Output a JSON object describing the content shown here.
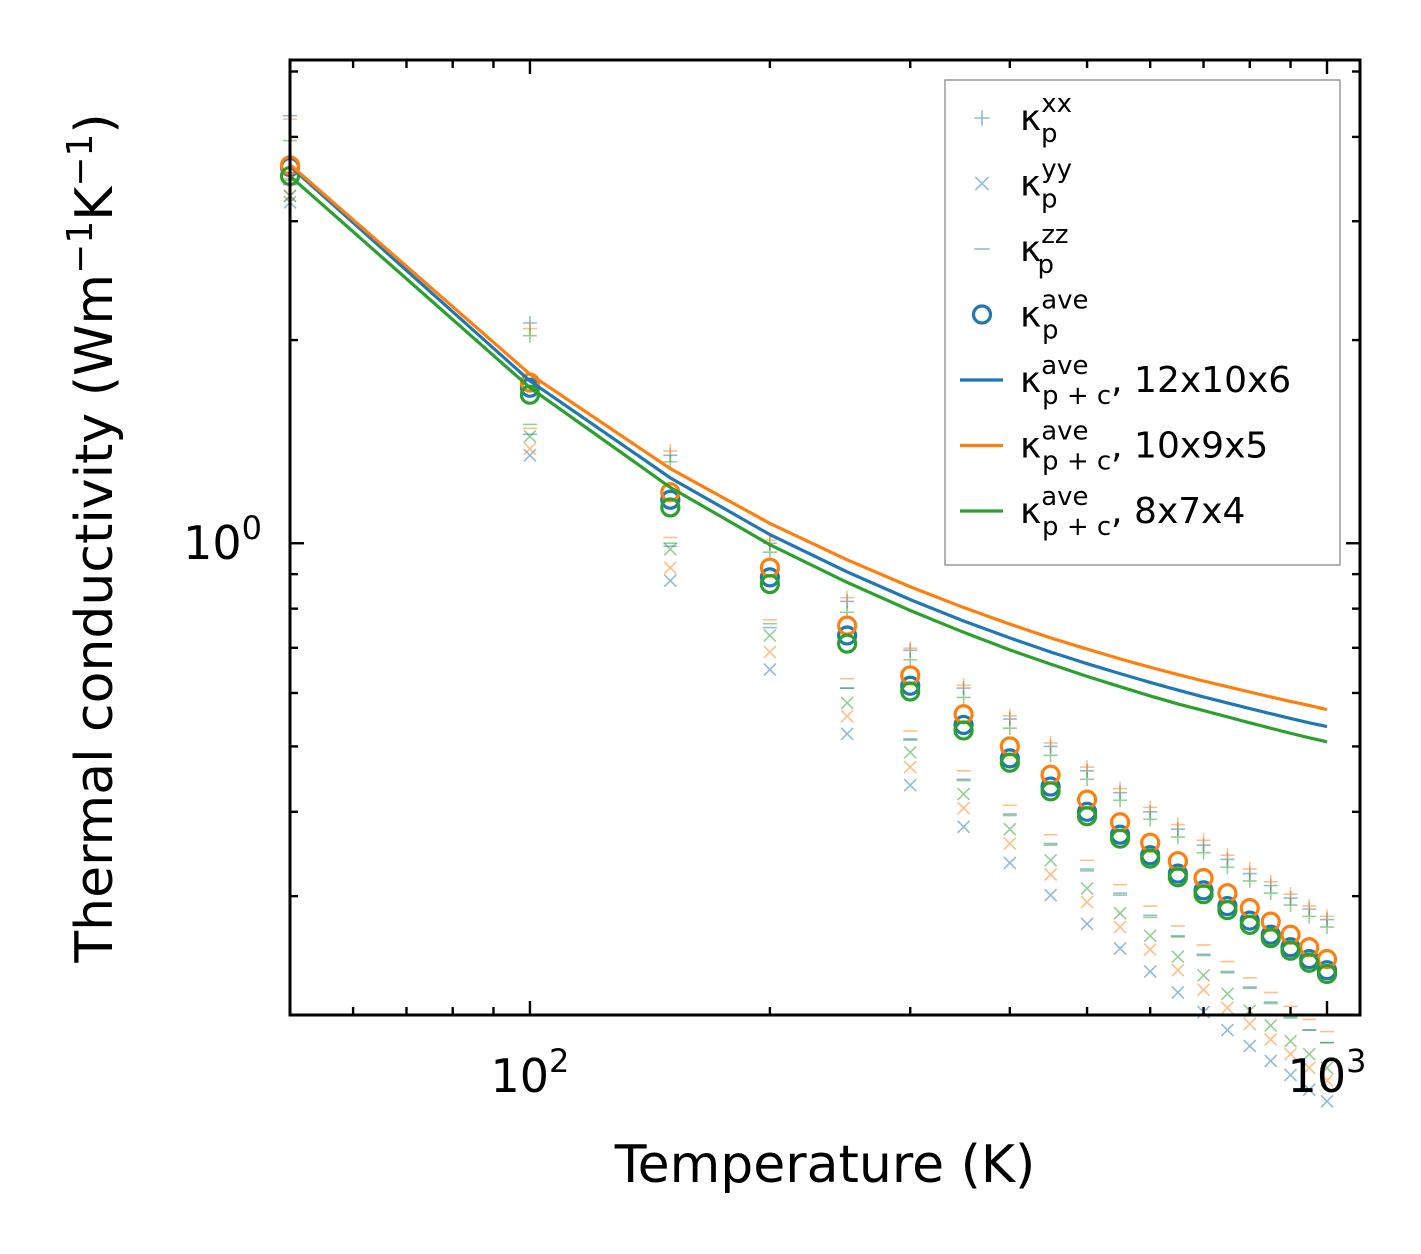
{
  "chart_data": {
    "type": "scatter",
    "xscale": "log",
    "yscale": "log",
    "xlabel": "Temperature (K)",
    "ylabel": {
      "main": "Thermal conductivity (Wm",
      "exp1": "−1",
      "mid": "K",
      "exp2": "−1",
      "end": ")"
    },
    "xlim": [
      50,
      1100
    ],
    "ylim": [
      0.2,
      5.2
    ],
    "xticks": [
      {
        "value": 100,
        "base": "10",
        "exp": "2"
      },
      {
        "value": 1000,
        "base": "10",
        "exp": "3"
      }
    ],
    "yticks": [
      {
        "value": 1,
        "base": "10",
        "exp": "0"
      }
    ],
    "x": [
      50,
      100,
      150,
      200,
      250,
      300,
      350,
      400,
      450,
      500,
      550,
      600,
      650,
      700,
      750,
      800,
      850,
      900,
      950,
      1000
    ],
    "colors": {
      "blue": "#1f77b4",
      "orange": "#ff7f0e",
      "green": "#2ca02c"
    },
    "legend": {
      "position": "upper right",
      "entries": [
        {
          "marker": "plus",
          "color": "#1f77b4",
          "sym": "κ",
          "sup": "xx",
          "sub": "p",
          "suffix": ""
        },
        {
          "marker": "x",
          "color": "#1f77b4",
          "sym": "κ",
          "sup": "yy",
          "sub": "p",
          "suffix": ""
        },
        {
          "marker": "dash",
          "color": "#1f77b4",
          "sym": "κ",
          "sup": "zz",
          "sub": "p",
          "suffix": ""
        },
        {
          "marker": "circle",
          "color": "#1f77b4",
          "sym": "κ",
          "sup": "ave",
          "sub": "p",
          "suffix": ""
        },
        {
          "marker": "line",
          "color": "#1f77b4",
          "sym": "κ",
          "sup": "ave",
          "sub": "p + c",
          "suffix": ", 12x10x6"
        },
        {
          "marker": "line",
          "color": "#ff7f0e",
          "sym": "κ",
          "sup": "ave",
          "sub": "p + c",
          "suffix": ", 10x9x5"
        },
        {
          "marker": "line",
          "color": "#2ca02c",
          "sym": "κ",
          "sup": "ave",
          "sub": "p + c",
          "suffix": ", 8x7x4"
        }
      ]
    },
    "series": [
      {
        "name": "12x10x6",
        "color": "#1f77b4",
        "kxx": [
          4.3,
          2.12,
          1.35,
          1.0,
          0.82,
          0.694,
          0.61,
          0.549,
          0.5,
          0.46,
          0.427,
          0.4,
          0.377,
          0.357,
          0.34,
          0.324,
          0.311,
          0.298,
          0.287,
          0.277
        ],
        "kyy": [
          3.2,
          1.35,
          0.88,
          0.65,
          0.522,
          0.438,
          0.38,
          0.336,
          0.301,
          0.273,
          0.251,
          0.232,
          0.216,
          0.202,
          0.19,
          0.18,
          0.171,
          0.163,
          0.155,
          0.149
        ],
        "kzz": [
          3.4,
          1.45,
          0.99,
          0.75,
          0.61,
          0.513,
          0.447,
          0.397,
          0.359,
          0.329,
          0.303,
          0.281,
          0.262,
          0.246,
          0.232,
          0.22,
          0.209,
          0.199,
          0.19,
          0.182
        ],
        "kave": [
          3.61,
          1.7,
          1.16,
          0.89,
          0.73,
          0.615,
          0.538,
          0.48,
          0.436,
          0.4,
          0.37,
          0.345,
          0.324,
          0.306,
          0.29,
          0.276,
          0.263,
          0.252,
          0.242,
          0.233
        ],
        "kpc": [
          3.62,
          1.74,
          1.25,
          1.03,
          0.907,
          0.825,
          0.767,
          0.724,
          0.69,
          0.663,
          0.641,
          0.622,
          0.606,
          0.592,
          0.58,
          0.569,
          0.559,
          0.55,
          0.542,
          0.535
        ]
      },
      {
        "name": "10x9x5",
        "color": "#ff7f0e",
        "kxx": [
          4.25,
          2.08,
          1.37,
          1.01,
          0.83,
          0.699,
          0.616,
          0.555,
          0.506,
          0.466,
          0.433,
          0.406,
          0.383,
          0.363,
          0.345,
          0.329,
          0.315,
          0.302,
          0.29,
          0.28
        ],
        "kyy": [
          3.27,
          1.38,
          0.92,
          0.69,
          0.554,
          0.466,
          0.405,
          0.359,
          0.323,
          0.294,
          0.27,
          0.25,
          0.233,
          0.218,
          0.205,
          0.194,
          0.184,
          0.175,
          0.167,
          0.16
        ],
        "kzz": [
          3.47,
          1.48,
          1.02,
          0.77,
          0.63,
          0.527,
          0.46,
          0.409,
          0.37,
          0.339,
          0.312,
          0.29,
          0.271,
          0.254,
          0.24,
          0.227,
          0.216,
          0.206,
          0.197,
          0.189
        ],
        "kave": [
          3.63,
          1.73,
          1.19,
          0.92,
          0.755,
          0.637,
          0.558,
          0.5,
          0.454,
          0.417,
          0.386,
          0.36,
          0.338,
          0.319,
          0.303,
          0.288,
          0.275,
          0.263,
          0.252,
          0.242
        ],
        "kpc": [
          3.64,
          1.78,
          1.29,
          1.07,
          0.945,
          0.862,
          0.803,
          0.759,
          0.724,
          0.697,
          0.674,
          0.655,
          0.639,
          0.625,
          0.613,
          0.602,
          0.592,
          0.583,
          0.575,
          0.567
        ]
      },
      {
        "name": "8x7x4",
        "color": "#2ca02c",
        "kxx": [
          3.95,
          2.03,
          1.32,
          0.97,
          0.79,
          0.672,
          0.591,
          0.532,
          0.485,
          0.447,
          0.416,
          0.39,
          0.367,
          0.348,
          0.331,
          0.316,
          0.303,
          0.291,
          0.28,
          0.27
        ],
        "kyy": [
          3.27,
          1.44,
          0.98,
          0.73,
          0.58,
          0.49,
          0.425,
          0.377,
          0.339,
          0.308,
          0.283,
          0.262,
          0.244,
          0.229,
          0.215,
          0.203,
          0.193,
          0.183,
          0.175,
          0.167
        ],
        "kzz": [
          3.45,
          1.5,
          1.0,
          0.76,
          0.61,
          0.511,
          0.445,
          0.395,
          0.357,
          0.327,
          0.301,
          0.279,
          0.261,
          0.245,
          0.231,
          0.219,
          0.208,
          0.198,
          0.19,
          0.182
        ],
        "kave": [
          3.5,
          1.66,
          1.13,
          0.87,
          0.71,
          0.603,
          0.528,
          0.473,
          0.429,
          0.394,
          0.365,
          0.341,
          0.32,
          0.302,
          0.286,
          0.272,
          0.26,
          0.249,
          0.239,
          0.23
        ],
        "kpc": [
          3.5,
          1.7,
          1.21,
          0.995,
          0.875,
          0.795,
          0.738,
          0.695,
          0.662,
          0.635,
          0.613,
          0.594,
          0.578,
          0.565,
          0.553,
          0.542,
          0.532,
          0.523,
          0.515,
          0.508
        ]
      }
    ]
  }
}
